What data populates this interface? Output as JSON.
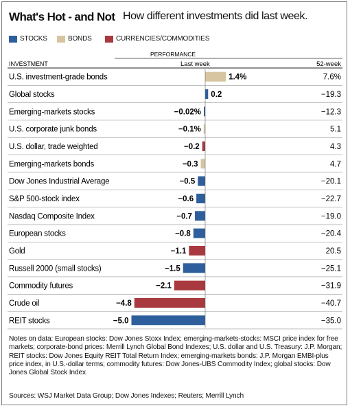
{
  "title": "What's Hot - and Not",
  "subtitle": "How different investments did last week.",
  "legend": [
    {
      "label": "STOCKS",
      "color": "#2e5f9c"
    },
    {
      "label": "BONDS",
      "color": "#d6c5a0"
    },
    {
      "label": "CURRENCIES/COMMODITIES",
      "color": "#a83a3f"
    }
  ],
  "headers": {
    "investment": "INVESTMENT",
    "performance": "PERFORMANCE",
    "last_week": "Last week",
    "week52": "52-week"
  },
  "chart_data": {
    "type": "bar",
    "orientation": "horizontal",
    "title": "What's Hot - and Not",
    "categories": [
      "U.S. investment-grade bonds",
      "Global stocks",
      "Emerging-markets stocks",
      "U.S. corporate junk bonds",
      "U.S. dollar, trade weighted",
      "Emerging-markets bonds",
      "Dow Jones Industrial Average",
      "S&P 500-stock index",
      "Nasdaq Composite Index",
      "European stocks",
      "Gold",
      "Russell 2000 (small stocks)",
      "Commodity futures",
      "Crude oil",
      "REIT stocks"
    ],
    "series": [
      {
        "name": "Last week",
        "values": [
          1.4,
          0.2,
          -0.02,
          -0.1,
          -0.2,
          -0.3,
          -0.5,
          -0.6,
          -0.7,
          -0.8,
          -1.1,
          -1.5,
          -2.1,
          -4.8,
          -5.0
        ],
        "labels": [
          "1.4%",
          "0.2",
          "−0.02%",
          "−0.1%",
          "−0.2",
          "−0.3",
          "−0.5",
          "−0.6",
          "−0.7",
          "−0.8",
          "−1.1",
          "−1.5",
          "−2.1",
          "−4.8",
          "−5.0"
        ]
      },
      {
        "name": "52-week",
        "values": [
          7.6,
          -19.3,
          -12.3,
          5.1,
          4.3,
          4.7,
          -20.1,
          -22.7,
          -19.0,
          -20.4,
          20.5,
          -25.1,
          -31.9,
          -40.7,
          -35.0
        ],
        "labels": [
          "7.6%",
          "−19.3",
          "−12.3",
          "5.1",
          "4.3",
          "4.7",
          "−20.1",
          "−22.7",
          "−19.0",
          "−20.4",
          "20.5",
          "−25.1",
          "−31.9",
          "−40.7",
          "−35.0"
        ]
      }
    ],
    "asset_class": [
      "bonds",
      "stocks",
      "stocks",
      "bonds",
      "currencies",
      "bonds",
      "stocks",
      "stocks",
      "stocks",
      "stocks",
      "currencies",
      "stocks",
      "currencies",
      "currencies",
      "stocks"
    ],
    "class_colors": {
      "stocks": "#2e5f9c",
      "bonds": "#d6c5a0",
      "currencies": "#a83a3f"
    },
    "xlim": [
      -5.0,
      1.4
    ],
    "grid": false,
    "legend_position": "top-left"
  },
  "notes": "Notes on data: European stocks: Dow Jones Stoxx Index; emerging-markets-stocks: MSCI price index for free markets; corporate-bond prices: Merrill Lynch Global Bond Indexes; U.S. dollar and U.S. Treasury: J.P. Morgan; REIT stocks: Dow Jones Equity REIT Total Return Index; emerging-markets bonds: J.P. Morgan EMBI-plus price index, in U.S.-dollar terms; commodity futures: Dow Jones-UBS Commodity Index; global stocks: Dow Jones Global Stock Index",
  "source": "Sources: WSJ Market Data Group; Dow Jones Indexes; Reuters; Merrill Lynch"
}
